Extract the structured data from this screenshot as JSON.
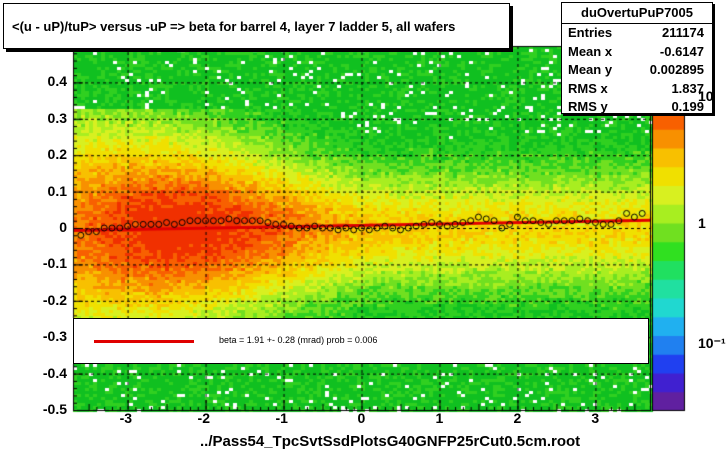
{
  "title": "<(u - uP)/tuP> versus  -uP => beta for barrel 4, layer 7 ladder 5, all wafers",
  "footer": "../Pass54_TpcSvtSsdPlotsG40GNFP25rCut0.5cm.root",
  "stats": {
    "name": "duOvertuPuP7005",
    "rows": [
      {
        "label": "Entries",
        "value": "211174"
      },
      {
        "label": "Mean x",
        "value": "-0.6147"
      },
      {
        "label": "Mean y",
        "value": "0.002895"
      },
      {
        "label": "RMS x",
        "value": "1.837"
      },
      {
        "label": "RMS y",
        "value": "0.199"
      }
    ]
  },
  "legend": {
    "text": "beta =     1.91 +-  0.28 (mrad) prob = 0.006"
  },
  "chart_data": {
    "type": "heatmap",
    "title": "<(u - uP)/tuP> versus  -uP => beta for barrel 4, layer 7 ladder 5, all wafers",
    "xlim": [
      -3.7,
      3.7
    ],
    "ylim": [
      -0.5,
      0.5
    ],
    "x_ticks": [
      "-3",
      "-2",
      "-1",
      "0",
      "1",
      "2",
      "3"
    ],
    "y_ticks": [
      "-0.5",
      "-0.4",
      "-0.3",
      "-0.2",
      "-0.1",
      "0",
      "0.1",
      "0.2",
      "0.3",
      "0.4"
    ],
    "z_scale": "log",
    "z_ticks": [
      "10⁻¹",
      "1",
      "10"
    ],
    "colors": {
      "fit_line": "#e00000",
      "profile_marker": "#000000"
    },
    "fit": {
      "slope_beta_mrad": 1.91,
      "error_mrad": 0.28,
      "prob": 0.006
    },
    "profile": {
      "x": [
        -3.6,
        -3.5,
        -3.4,
        -3.3,
        -3.2,
        -3.1,
        -3.0,
        -2.9,
        -2.8,
        -2.7,
        -2.6,
        -2.5,
        -2.4,
        -2.3,
        -2.2,
        -2.1,
        -2.0,
        -1.9,
        -1.8,
        -1.7,
        -1.6,
        -1.5,
        -1.4,
        -1.3,
        -1.2,
        -1.1,
        -1.0,
        -0.9,
        -0.8,
        -0.7,
        -0.6,
        -0.5,
        -0.4,
        -0.3,
        -0.2,
        -0.1,
        0.0,
        0.1,
        0.2,
        0.3,
        0.4,
        0.5,
        0.6,
        0.7,
        0.8,
        0.9,
        1.0,
        1.1,
        1.2,
        1.3,
        1.4,
        1.5,
        1.6,
        1.7,
        1.8,
        1.9,
        2.0,
        2.1,
        2.2,
        2.3,
        2.4,
        2.5,
        2.6,
        2.7,
        2.8,
        2.9,
        3.0,
        3.1,
        3.2,
        3.3,
        3.4,
        3.5,
        3.6
      ],
      "y": [
        -0.02,
        -0.01,
        -0.01,
        0.0,
        0.0,
        0.0,
        0.005,
        0.01,
        0.01,
        0.01,
        0.01,
        0.015,
        0.01,
        0.015,
        0.02,
        0.02,
        0.02,
        0.02,
        0.02,
        0.025,
        0.02,
        0.02,
        0.02,
        0.02,
        0.015,
        0.01,
        0.01,
        0.005,
        0.0,
        0.0,
        0.005,
        0.0,
        0.0,
        -0.005,
        0.0,
        -0.005,
        0.0,
        -0.005,
        0.0,
        0.005,
        0.0,
        -0.005,
        0.0,
        0.005,
        0.01,
        0.015,
        0.01,
        0.005,
        0.01,
        0.015,
        0.02,
        0.03,
        0.025,
        0.02,
        0.0,
        0.01,
        0.03,
        0.02,
        0.02,
        0.015,
        0.01,
        0.02,
        0.02,
        0.02,
        0.025,
        0.02,
        0.015,
        0.01,
        0.01,
        0.02,
        0.04,
        0.03,
        0.04
      ]
    }
  }
}
